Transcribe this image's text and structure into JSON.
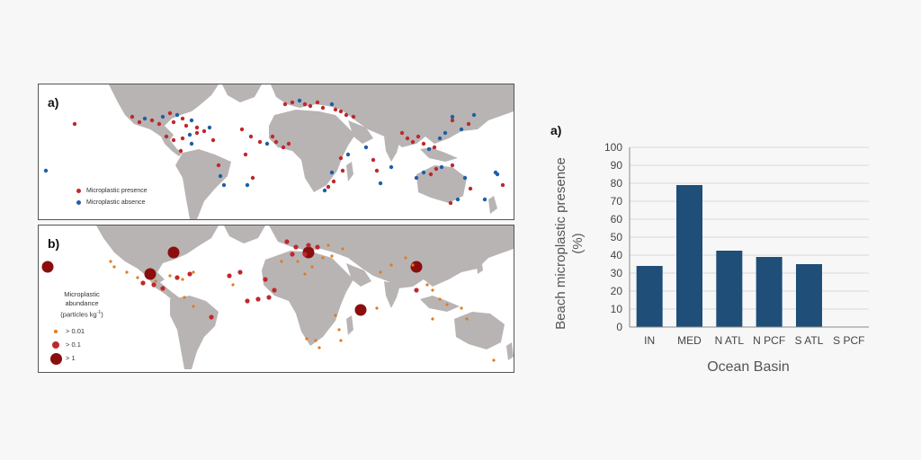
{
  "panel_a": {
    "letter": "a)",
    "legend": [
      {
        "label": "Microplastic presence",
        "color": "#c0282d"
      },
      {
        "label": "Microplastic absence",
        "color": "#1f5fa8"
      }
    ]
  },
  "panel_b": {
    "letter": "b)",
    "legend_title_1": "Microplastic",
    "legend_title_2": "abundance",
    "legend_title_3": "(particles kg",
    "legend_title_sup": "-1",
    "legend_title_close": ")",
    "legend": [
      {
        "label": "> 0.01",
        "color": "#e07b22"
      },
      {
        "label": "> 0.1",
        "color": "#c0282d"
      },
      {
        "label": "> 1",
        "color": "#8b0d0d"
      }
    ]
  },
  "colors": {
    "land": "#b9b4b4",
    "presence": "#c0282d",
    "absence": "#1f5fa8",
    "bar": "#1f4e79"
  },
  "chart_data": {
    "type": "bar",
    "panel_letter": "a)",
    "categories": [
      "IN",
      "MED",
      "N ATL",
      "N PCF",
      "S ATL",
      "S PCF"
    ],
    "values": [
      34,
      79,
      42.5,
      39,
      35,
      0
    ],
    "xlabel": "Ocean Basin",
    "ylabel_line1": "Beach microplastic presence",
    "ylabel_line2": "(%)",
    "ylim": [
      0,
      100
    ],
    "yticks": [
      "0",
      "10",
      "20",
      "30",
      "40",
      "50",
      "60",
      "70",
      "80",
      "90",
      "100"
    ],
    "grid": true
  }
}
